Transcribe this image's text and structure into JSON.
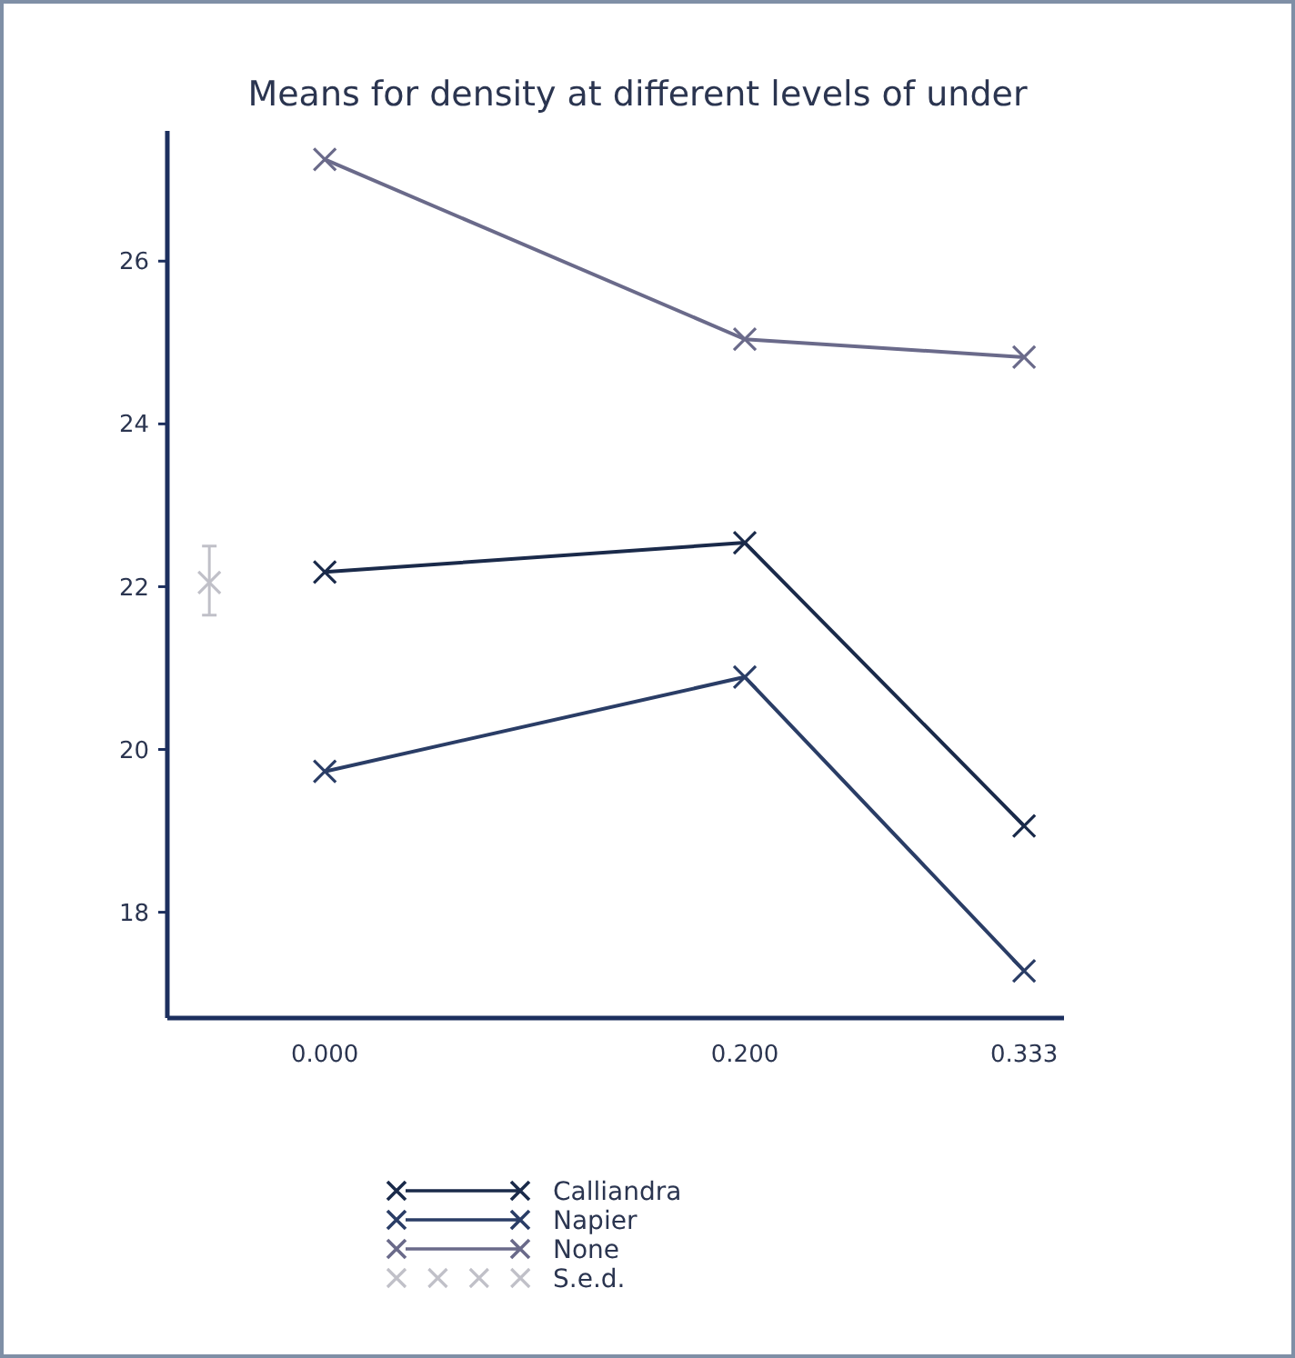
{
  "chart_data": {
    "type": "line",
    "title": "Means for density at different levels of under",
    "x": [
      0,
      0.2,
      0.333
    ],
    "xlim": [
      -0.075,
      0.352
    ],
    "xticks": [
      {
        "value": 0,
        "label": "0.000"
      },
      {
        "value": 0.2,
        "label": "0.200"
      },
      {
        "value": 0.333,
        "label": "0.333"
      }
    ],
    "ylim": [
      16.7,
      27.6
    ],
    "yticks": [
      18,
      20,
      22,
      24,
      26
    ],
    "marker": "cross",
    "grid": false,
    "legend": "bottom",
    "series": [
      {
        "name": "Calliandra",
        "color": "#1a2a4a",
        "values": [
          22.18,
          22.54,
          19.06
        ]
      },
      {
        "name": "Napier",
        "color": "#2a3d66",
        "values": [
          19.73,
          20.89,
          17.28
        ]
      },
      {
        "name": "None",
        "color": "#6a6a8a",
        "values": [
          27.25,
          25.04,
          24.82
        ]
      },
      {
        "name": "S.e.d.",
        "type": "scatter",
        "color": "#c0c0c8",
        "x": [
          -0.055
        ],
        "values": [
          22.05
        ],
        "errors": [
          [
            21.65,
            22.5
          ]
        ]
      }
    ]
  }
}
